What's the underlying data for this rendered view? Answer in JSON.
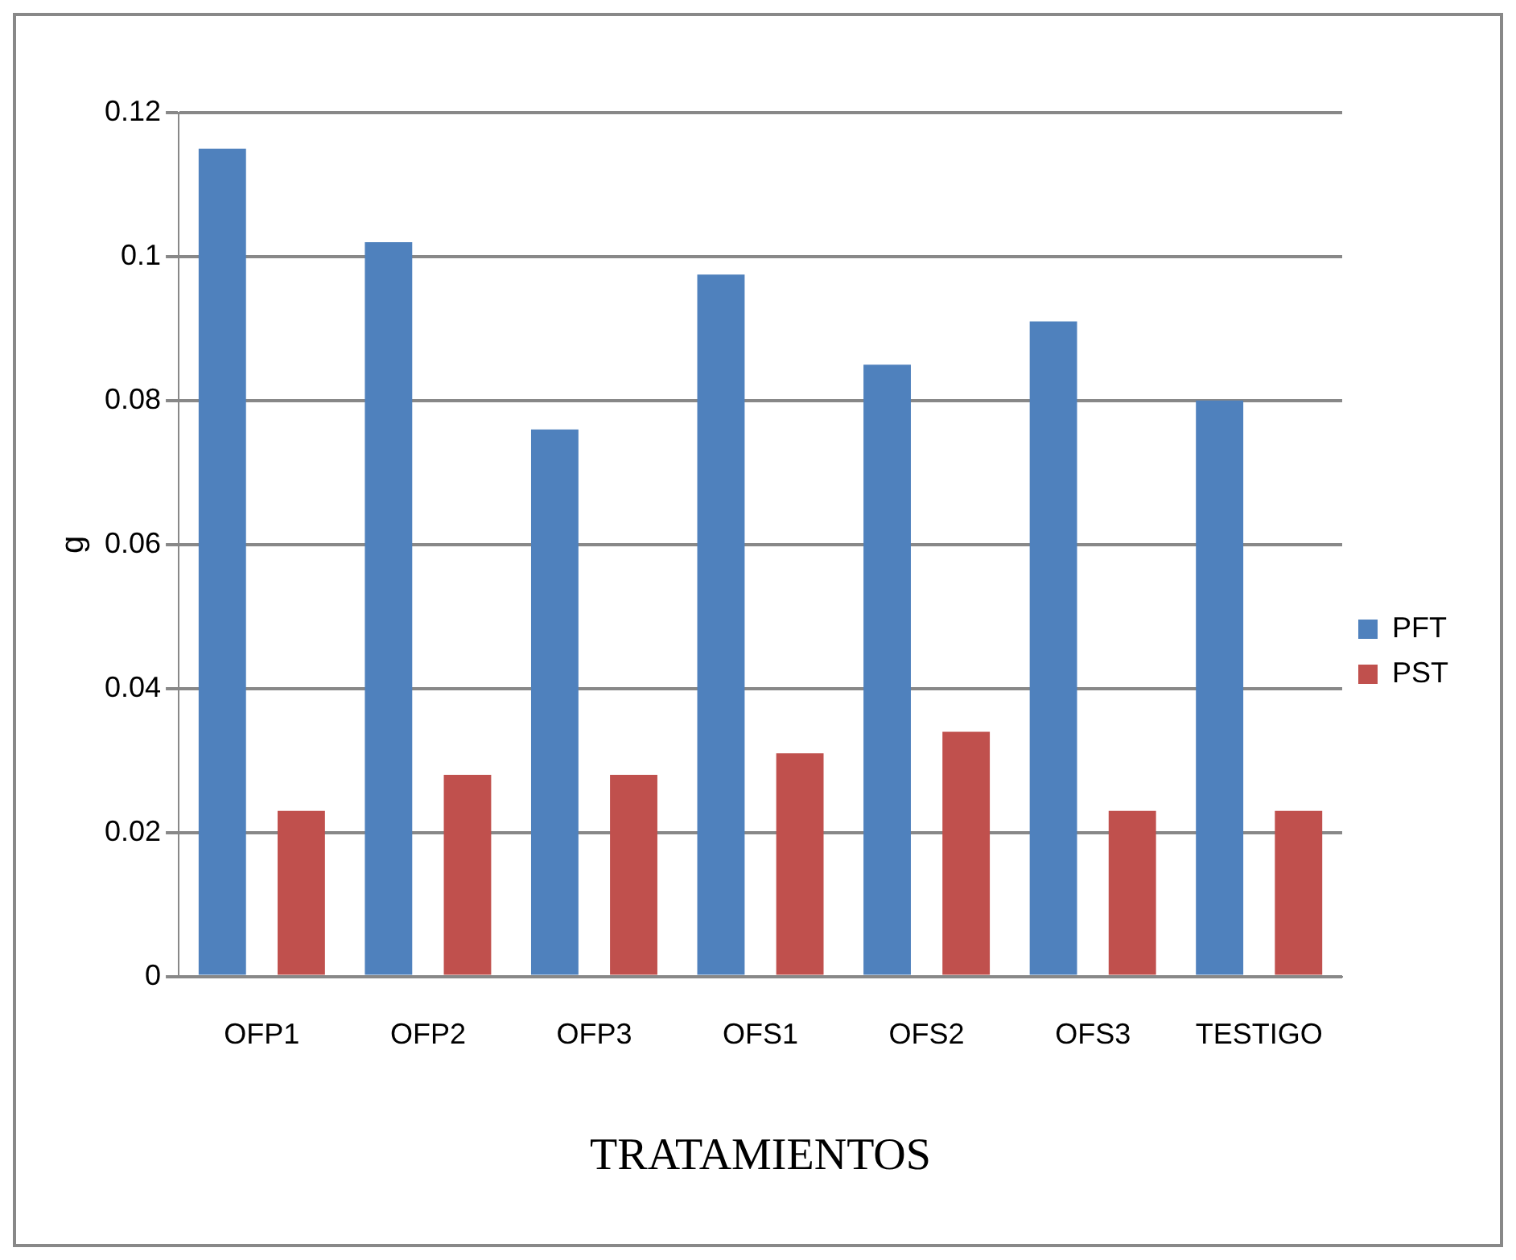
{
  "chart_data": {
    "type": "bar",
    "xlabel": "TRATAMIENTOS",
    "ylabel": "g",
    "categories": [
      "OFP1",
      "OFP2",
      "OFP3",
      "OFS1",
      "OFS2",
      "OFS3",
      "TESTIGO"
    ],
    "series": [
      {
        "name": "PFT",
        "color": "#4f81bd",
        "values": [
          0.115,
          0.102,
          0.076,
          0.0975,
          0.085,
          0.091,
          0.08
        ]
      },
      {
        "name": "PST",
        "color": "#c0504d",
        "values": [
          0.023,
          0.028,
          0.028,
          0.031,
          0.034,
          0.023,
          0.023
        ]
      }
    ],
    "ylim": [
      0,
      0.12
    ],
    "yticks": [
      0,
      0.02,
      0.04,
      0.06,
      0.08,
      0.1,
      0.12
    ],
    "grid": "y",
    "legend": "right"
  }
}
